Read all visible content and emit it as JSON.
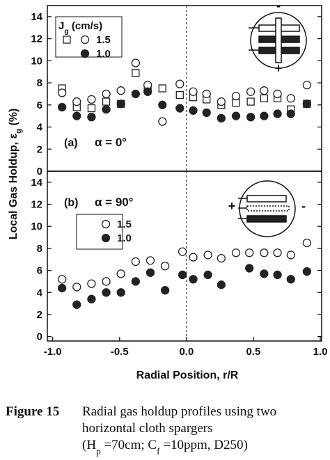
{
  "chart_data": [
    {
      "type": "scatter",
      "annotation": {
        "panel": "(a)",
        "text": "α = 0°"
      },
      "ylabel": [
        {
          "text": "Local Gas Holdup,  ε"
        },
        {
          "text": "g",
          "sub": true
        },
        {
          "text": " (%)"
        }
      ],
      "legend_title": [
        {
          "text": "J"
        },
        {
          "text": "g",
          "sub": true
        },
        {
          "text": " (cm/s)"
        }
      ],
      "icon_labels": [
        "-",
        "+"
      ],
      "xlim": [
        -1.04,
        1.01
      ],
      "ylim": [
        0,
        15
      ],
      "yticks": [
        0,
        2,
        4,
        6,
        8,
        10,
        12,
        14
      ],
      "vline": 0,
      "series": [
        {
          "name": "1.5",
          "marker": "square-open",
          "color": "#222",
          "x": [
            -0.93,
            -0.82,
            -0.71,
            -0.6,
            -0.49,
            -0.38,
            -0.29,
            -0.18,
            -0.05,
            0.05,
            0.15,
            0.26,
            0.37,
            0.48,
            0.58,
            0.68,
            0.78,
            0.9
          ],
          "values": [
            7.5,
            5.8,
            5.7,
            6.3,
            6.1,
            8.9,
            7.6,
            7.5,
            6.9,
            6.7,
            6.5,
            6.0,
            6.2,
            6.3,
            6.6,
            6.6,
            5.6,
            6.1
          ]
        },
        {
          "name": "1.5",
          "marker": "circle-open",
          "color": "#222",
          "x": [
            -0.93,
            -0.82,
            -0.71,
            -0.6,
            -0.49,
            -0.38,
            -0.29,
            -0.18,
            -0.05,
            0.05,
            0.15,
            0.26,
            0.37,
            0.48,
            0.58,
            0.68,
            0.78,
            0.9
          ],
          "values": [
            7.1,
            6.3,
            6.5,
            7.0,
            7.3,
            9.8,
            7.8,
            4.5,
            7.9,
            7.2,
            7.0,
            6.3,
            6.8,
            7.2,
            7.3,
            7.0,
            6.6,
            7.8
          ]
        },
        {
          "name": "1.0",
          "marker": "circle-filled",
          "color": "#222",
          "x": [
            -0.93,
            -0.82,
            -0.71,
            -0.6,
            -0.49,
            -0.38,
            -0.29,
            -0.18,
            -0.05,
            0.05,
            0.15,
            0.26,
            0.37,
            0.48,
            0.58,
            0.68,
            0.78,
            0.9
          ],
          "values": [
            5.8,
            5.0,
            4.9,
            5.6,
            6.1,
            7.0,
            7.2,
            6.0,
            5.7,
            5.5,
            5.3,
            4.8,
            5.0,
            4.9,
            5.0,
            5.2,
            5.2,
            6.1
          ]
        }
      ]
    },
    {
      "type": "scatter",
      "annotation": {
        "panel": "(b)",
        "text": "α = 90°"
      },
      "xlabel": "Radial Position, r/R",
      "icon_labels": [
        "+",
        "-"
      ],
      "xlim": [
        -1.04,
        1.01
      ],
      "ylim": [
        -0.4,
        15
      ],
      "yticks": [
        0,
        2,
        4,
        6,
        8,
        10,
        12,
        14
      ],
      "vline": 0,
      "xticks": [
        {
          "value": -1,
          "label": "-1.0"
        },
        {
          "value": -0.5,
          "label": "-0.5"
        },
        {
          "value": 0,
          "label": "0.0"
        },
        {
          "value": 0.5,
          "label": "0.5"
        },
        {
          "value": 1,
          "label": "1.0"
        }
      ],
      "series": [
        {
          "name": "1.5",
          "marker": "circle-open",
          "color": "#222",
          "x": [
            -0.93,
            -0.82,
            -0.71,
            -0.6,
            -0.49,
            -0.38,
            -0.27,
            -0.16,
            -0.03,
            0.05,
            0.16,
            0.26,
            0.37,
            0.47,
            0.58,
            0.68,
            0.78,
            0.9
          ],
          "values": [
            5.2,
            4.5,
            4.8,
            5.0,
            5.7,
            6.8,
            6.9,
            6.4,
            7.7,
            7.2,
            7.4,
            7.1,
            7.6,
            7.6,
            7.6,
            7.6,
            7.4,
            8.5
          ]
        },
        {
          "name": "1.0",
          "marker": "circle-filled",
          "color": "#222",
          "x": [
            -0.93,
            -0.82,
            -0.71,
            -0.6,
            -0.49,
            -0.38,
            -0.27,
            -0.16,
            -0.03,
            0.05,
            0.16,
            0.26,
            0.47,
            0.58,
            0.68,
            0.78,
            0.9
          ],
          "values": [
            4.4,
            2.9,
            3.4,
            4.0,
            4.0,
            5.0,
            5.8,
            4.2,
            5.6,
            5.2,
            5.6,
            4.7,
            6.2,
            5.7,
            5.6,
            5.2,
            5.9
          ]
        }
      ]
    }
  ],
  "caption": {
    "label": "Figure 15",
    "line1": "Radial gas holdup profiles using two",
    "line2": "horizontal cloth spargers",
    "line3": [
      {
        "text": "(H"
      },
      {
        "text": "p",
        "sub": true
      },
      {
        "text": " =70cm;  C"
      },
      {
        "text": "f",
        "sub": true
      },
      {
        "text": " =10ppm, D250)"
      }
    ]
  }
}
